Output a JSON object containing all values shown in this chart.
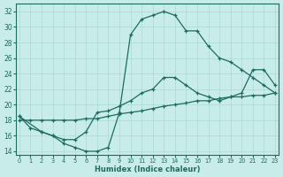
{
  "xlabel": "Humidex (Indice chaleur)",
  "xlim": [
    -0.3,
    23.3
  ],
  "ylim": [
    13.5,
    33.0
  ],
  "xticks": [
    0,
    1,
    2,
    3,
    4,
    5,
    6,
    7,
    8,
    9,
    10,
    11,
    12,
    13,
    14,
    15,
    16,
    17,
    18,
    19,
    20,
    21,
    22,
    23
  ],
  "yticks": [
    14,
    16,
    18,
    20,
    22,
    24,
    26,
    28,
    30,
    32
  ],
  "bg_color": "#c8ecea",
  "grid_color": "#aad8d4",
  "line_color": "#1e6b60",
  "line1_x": [
    0,
    1,
    2,
    3,
    4,
    5,
    6,
    7,
    8,
    9,
    10,
    11,
    12,
    13,
    14,
    15,
    16,
    17,
    18,
    19,
    20,
    21,
    22,
    23
  ],
  "line1_y": [
    18.5,
    17.0,
    16.5,
    16.0,
    15.0,
    14.5,
    14.0,
    14.0,
    14.5,
    19.0,
    29.0,
    31.0,
    31.5,
    32.0,
    31.5,
    29.5,
    29.5,
    27.5,
    26.0,
    25.5,
    24.5,
    23.5,
    22.5,
    21.5
  ],
  "line2_x": [
    0,
    2,
    3,
    4,
    5,
    6,
    7,
    8,
    9,
    10,
    11,
    12,
    13,
    14,
    15,
    16,
    17,
    18,
    19,
    20,
    21,
    22,
    23
  ],
  "line2_y": [
    18.5,
    16.5,
    16.0,
    15.5,
    15.5,
    16.5,
    19.0,
    19.2,
    19.8,
    20.5,
    21.5,
    22.0,
    23.5,
    23.5,
    22.5,
    21.5,
    21.0,
    20.5,
    21.0,
    21.5,
    24.5,
    24.5,
    22.5
  ],
  "line3_x": [
    0,
    1,
    2,
    3,
    4,
    5,
    6,
    7,
    8,
    9,
    10,
    11,
    12,
    13,
    14,
    15,
    16,
    17,
    18,
    19,
    20,
    21,
    22,
    23
  ],
  "line3_y": [
    18.0,
    18.0,
    18.0,
    18.0,
    18.0,
    18.0,
    18.2,
    18.2,
    18.5,
    18.8,
    19.0,
    19.2,
    19.5,
    19.8,
    20.0,
    20.2,
    20.5,
    20.5,
    20.8,
    21.0,
    21.0,
    21.2,
    21.2,
    21.5
  ]
}
